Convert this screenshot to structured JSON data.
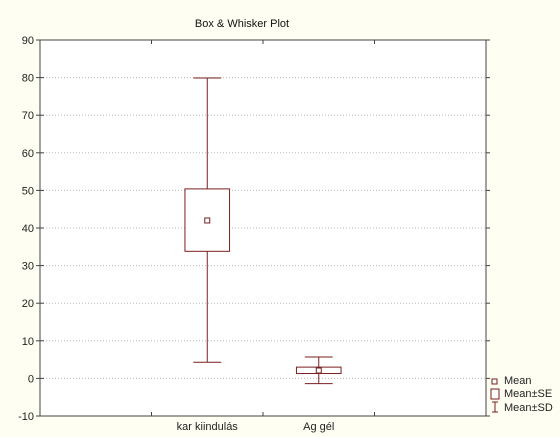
{
  "chart_data": {
    "type": "box",
    "title": "Box & Whisker Plot",
    "xlabel": "",
    "ylabel": "",
    "categories": [
      "kar kiindulás",
      "Ag gél"
    ],
    "series": [
      {
        "category": "kar kiindulás",
        "mean": 42.0,
        "se_low": 33.8,
        "se_high": 50.4,
        "sd_low": 4.3,
        "sd_high": 79.9
      },
      {
        "category": "Ag gél",
        "mean": 2.1,
        "se_low": 1.3,
        "se_high": 3.0,
        "sd_low": -1.4,
        "sd_high": 5.7
      }
    ],
    "ylim": [
      -10,
      90
    ],
    "yticks": [
      -10,
      0,
      10,
      20,
      30,
      40,
      50,
      60,
      70,
      80,
      90
    ],
    "grid": true,
    "legend": {
      "position": "bottom-right",
      "entries": [
        "Mean",
        "Mean±SE",
        "Mean±SD"
      ]
    },
    "colors": {
      "box": "#7a1f1f",
      "background": "#fefef2",
      "plot_background": "#ffffff",
      "grid": "#bbbbbb"
    }
  }
}
